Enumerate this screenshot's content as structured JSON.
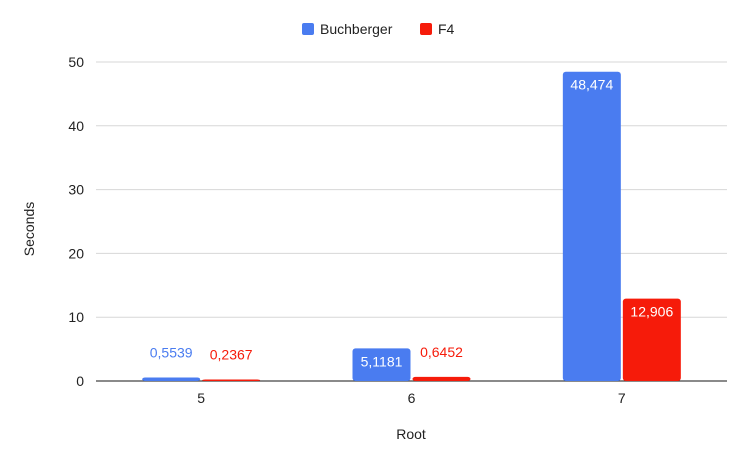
{
  "chart_data": {
    "type": "bar",
    "categories": [
      "5",
      "6",
      "7"
    ],
    "series": [
      {
        "name": "Buchberger",
        "values": [
          0.5539,
          5.1181,
          48.474
        ],
        "labels": [
          "0,5539",
          "5,1181",
          "48,474"
        ],
        "color": "#4a7cf0"
      },
      {
        "name": "F4",
        "values": [
          0.2367,
          0.6452,
          12.906
        ],
        "labels": [
          "0,2367",
          "0,6452",
          "12,906"
        ],
        "color": "#f61b0a"
      }
    ],
    "xlabel": "Root",
    "ylabel": "Seconds",
    "ylim": [
      0,
      50
    ],
    "yticks": [
      0,
      10,
      20,
      30,
      40,
      50
    ],
    "grid": true,
    "legend_position": "top-center"
  }
}
